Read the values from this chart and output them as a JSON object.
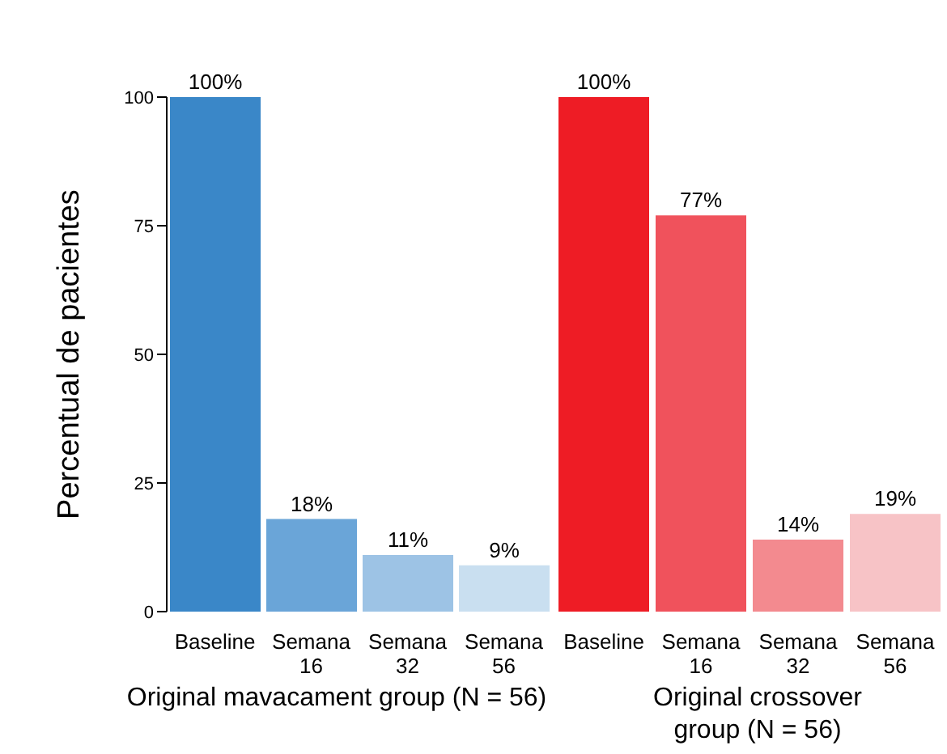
{
  "chart_data": [
    {
      "type": "bar",
      "categories": [
        "Baseline",
        "Semana 16",
        "Semana 32",
        "Semana 56"
      ],
      "values": [
        100,
        18,
        11,
        9
      ],
      "colors": [
        "#3a87c8",
        "#6aa5d8",
        "#9dc3e5",
        "#c9dff0"
      ],
      "value_labels": [
        "100%",
        "18%",
        "11%",
        "9%"
      ],
      "ylim": [
        0,
        100
      ],
      "yticks": [
        0,
        25,
        50,
        75,
        100
      ],
      "ylabel": "Percentual de pacientes",
      "xlabel": "Original mavacament group (N = 56)",
      "grid": false,
      "legend": false
    },
    {
      "type": "bar",
      "categories": [
        "Baseline",
        "Semana 16",
        "Semana 32",
        "Semana 56"
      ],
      "values": [
        100,
        77,
        14,
        19
      ],
      "colors": [
        "#ee1c25",
        "#f0525c",
        "#f38a8f",
        "#f7c3c6"
      ],
      "value_labels": [
        "100%",
        "77%",
        "14%",
        "19%"
      ],
      "ylim": [
        0,
        100
      ],
      "tick_labels": "x",
      "xlabel": "Original crossover group (N = 56)",
      "grid": false,
      "legend": false
    }
  ]
}
